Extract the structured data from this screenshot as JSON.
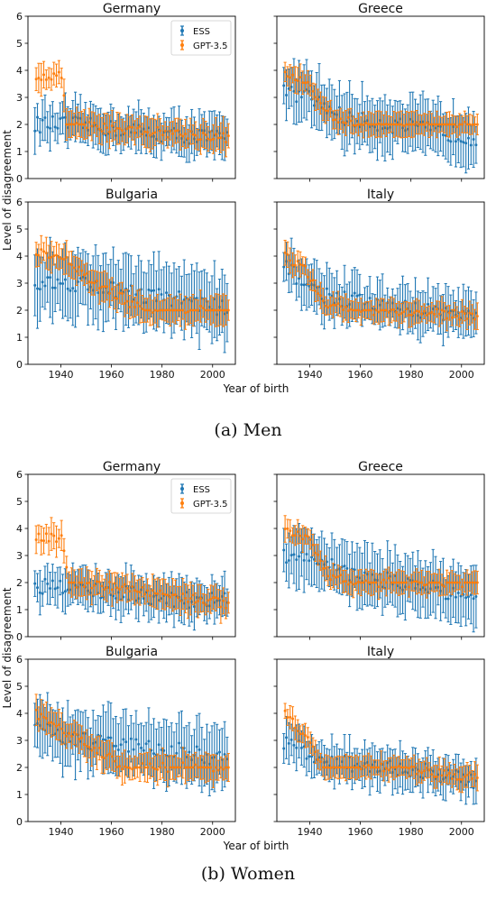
{
  "shared": {
    "ylabel": "Level of disagreement",
    "xlabel": "Year of birth",
    "x_ticks": [
      1940,
      1960,
      1980,
      2000
    ],
    "y_ticks": [
      0,
      1,
      2,
      3,
      4,
      5,
      6
    ],
    "xlim": [
      1927,
      2009
    ],
    "ylim": [
      0,
      6
    ],
    "legend": {
      "entries": [
        "ESS",
        "GPT-3.5"
      ],
      "placement": "upper-right of top-left panel"
    },
    "colors": {
      "ESS": "#1f77b4",
      "GPT-3.5": "#ff7f0e"
    }
  },
  "figures": [
    {
      "caption": "(a) Men"
    },
    {
      "caption": "(b) Women"
    }
  ],
  "chart_data": [
    {
      "figure": "(a) Men",
      "title": "Germany",
      "type": "scatter",
      "error_bars": true,
      "xlim": [
        1927,
        2009
      ],
      "ylim": [
        0,
        6
      ],
      "series": [
        {
          "name": "ESS",
          "x_range": [
            1930,
            2006
          ],
          "mean_trend": [
            [
              1930,
              2.0
            ],
            [
              1945,
              2.0
            ],
            [
              1965,
              1.8
            ],
            [
              1985,
              1.6
            ],
            [
              2006,
              1.5
            ]
          ],
          "error_halfwidth": 0.75
        },
        {
          "name": "GPT-3.5",
          "x_range": [
            1930,
            2006
          ],
          "mean_trend": [
            [
              1930,
              3.8
            ],
            [
              1940,
              3.8
            ],
            [
              1942,
              2.0
            ],
            [
              1970,
              1.8
            ],
            [
              2006,
              1.5
            ]
          ],
          "error_halfwidth": 0.5
        }
      ]
    },
    {
      "figure": "(a) Men",
      "title": "Greece",
      "type": "scatter",
      "error_bars": true,
      "xlim": [
        1927,
        2009
      ],
      "ylim": [
        0,
        6
      ],
      "series": [
        {
          "name": "ESS",
          "x_range": [
            1930,
            2006
          ],
          "mean_trend": [
            [
              1930,
              3.2
            ],
            [
              1940,
              3.0
            ],
            [
              1955,
              2.2
            ],
            [
              1980,
              1.9
            ],
            [
              2006,
              1.5
            ]
          ],
          "error_halfwidth": 1.0
        },
        {
          "name": "GPT-3.5",
          "x_range": [
            1930,
            2006
          ],
          "mean_trend": [
            [
              1930,
              4.0
            ],
            [
              1938,
              3.5
            ],
            [
              1950,
              2.2
            ],
            [
              1960,
              2.0
            ],
            [
              2006,
              2.0
            ]
          ],
          "error_halfwidth": 0.4
        }
      ]
    },
    {
      "figure": "(a) Men",
      "title": "Bulgaria",
      "type": "scatter",
      "error_bars": true,
      "xlim": [
        1927,
        2009
      ],
      "ylim": [
        0,
        6
      ],
      "series": [
        {
          "name": "ESS",
          "x_range": [
            1930,
            2006
          ],
          "mean_trend": [
            [
              1930,
              3.0
            ],
            [
              1950,
              3.0
            ],
            [
              1970,
              2.6
            ],
            [
              1990,
              2.4
            ],
            [
              2006,
              2.0
            ]
          ],
          "error_halfwidth": 1.2
        },
        {
          "name": "GPT-3.5",
          "x_range": [
            1930,
            2006
          ],
          "mean_trend": [
            [
              1930,
              4.2
            ],
            [
              1940,
              4.0
            ],
            [
              1950,
              3.2
            ],
            [
              1965,
              2.4
            ],
            [
              1972,
              2.0
            ],
            [
              2006,
              2.0
            ]
          ],
          "error_halfwidth": 0.5
        }
      ]
    },
    {
      "figure": "(a) Men",
      "title": "Italy",
      "type": "scatter",
      "error_bars": true,
      "xlim": [
        1927,
        2009
      ],
      "ylim": [
        0,
        6
      ],
      "series": [
        {
          "name": "ESS",
          "x_range": [
            1930,
            2006
          ],
          "mean_trend": [
            [
              1930,
              3.6
            ],
            [
              1945,
              2.6
            ],
            [
              1965,
              2.2
            ],
            [
              1985,
              2.0
            ],
            [
              2006,
              1.8
            ]
          ],
          "error_halfwidth": 0.8
        },
        {
          "name": "GPT-3.5",
          "x_range": [
            1930,
            2006
          ],
          "mean_trend": [
            [
              1930,
              4.0
            ],
            [
              1938,
              3.5
            ],
            [
              1945,
              2.2
            ],
            [
              1960,
              2.0
            ],
            [
              2006,
              1.8
            ]
          ],
          "error_halfwidth": 0.4
        }
      ]
    },
    {
      "figure": "(b) Women",
      "title": "Germany",
      "type": "scatter",
      "error_bars": true,
      "xlim": [
        1927,
        2009
      ],
      "ylim": [
        0,
        6
      ],
      "series": [
        {
          "name": "ESS",
          "x_range": [
            1930,
            2006
          ],
          "mean_trend": [
            [
              1930,
              1.9
            ],
            [
              1945,
              1.8
            ],
            [
              1965,
              1.6
            ],
            [
              1985,
              1.4
            ],
            [
              2006,
              1.3
            ]
          ],
          "error_halfwidth": 0.7
        },
        {
          "name": "GPT-3.5",
          "x_range": [
            1930,
            2006
          ],
          "mean_trend": [
            [
              1930,
              3.7
            ],
            [
              1940,
              3.6
            ],
            [
              1943,
              2.0
            ],
            [
              1965,
              1.8
            ],
            [
              2006,
              1.2
            ]
          ],
          "error_halfwidth": 0.5
        }
      ]
    },
    {
      "figure": "(b) Women",
      "title": "Greece",
      "type": "scatter",
      "error_bars": true,
      "xlim": [
        1927,
        2009
      ],
      "ylim": [
        0,
        6
      ],
      "series": [
        {
          "name": "ESS",
          "x_range": [
            1930,
            2006
          ],
          "mean_trend": [
            [
              1930,
              3.0
            ],
            [
              1940,
              3.0
            ],
            [
              1960,
              2.2
            ],
            [
              1985,
              1.9
            ],
            [
              2006,
              1.2
            ]
          ],
          "error_halfwidth": 1.0
        },
        {
          "name": "GPT-3.5",
          "x_range": [
            1930,
            2006
          ],
          "mean_trend": [
            [
              1930,
              4.0
            ],
            [
              1940,
              3.5
            ],
            [
              1948,
              2.2
            ],
            [
              1960,
              2.0
            ],
            [
              2006,
              2.0
            ]
          ],
          "error_halfwidth": 0.4
        }
      ]
    },
    {
      "figure": "(b) Women",
      "title": "Bulgaria",
      "type": "scatter",
      "error_bars": true,
      "xlim": [
        1927,
        2009
      ],
      "ylim": [
        0,
        6
      ],
      "series": [
        {
          "name": "ESS",
          "x_range": [
            1930,
            2006
          ],
          "mean_trend": [
            [
              1930,
              3.6
            ],
            [
              1945,
              3.0
            ],
            [
              1970,
              2.8
            ],
            [
              1990,
              2.6
            ],
            [
              2006,
              2.2
            ]
          ],
          "error_halfwidth": 1.1
        },
        {
          "name": "GPT-3.5",
          "x_range": [
            1930,
            2006
          ],
          "mean_trend": [
            [
              1930,
              4.0
            ],
            [
              1940,
              3.4
            ],
            [
              1955,
              2.6
            ],
            [
              1965,
              2.0
            ],
            [
              2006,
              2.0
            ]
          ],
          "error_halfwidth": 0.5
        }
      ]
    },
    {
      "figure": "(b) Women",
      "title": "Italy",
      "type": "scatter",
      "error_bars": true,
      "xlim": [
        1927,
        2009
      ],
      "ylim": [
        0,
        6
      ],
      "series": [
        {
          "name": "ESS",
          "x_range": [
            1930,
            2006
          ],
          "mean_trend": [
            [
              1930,
              3.0
            ],
            [
              1945,
              2.2
            ],
            [
              1970,
              2.0
            ],
            [
              1990,
              1.8
            ],
            [
              2006,
              1.4
            ]
          ],
          "error_halfwidth": 0.7
        },
        {
          "name": "GPT-3.5",
          "x_range": [
            1930,
            2006
          ],
          "mean_trend": [
            [
              1930,
              4.0
            ],
            [
              1940,
              3.0
            ],
            [
              1945,
              2.0
            ],
            [
              1975,
              2.0
            ],
            [
              2006,
              1.6
            ]
          ],
          "error_halfwidth": 0.4
        }
      ]
    }
  ]
}
